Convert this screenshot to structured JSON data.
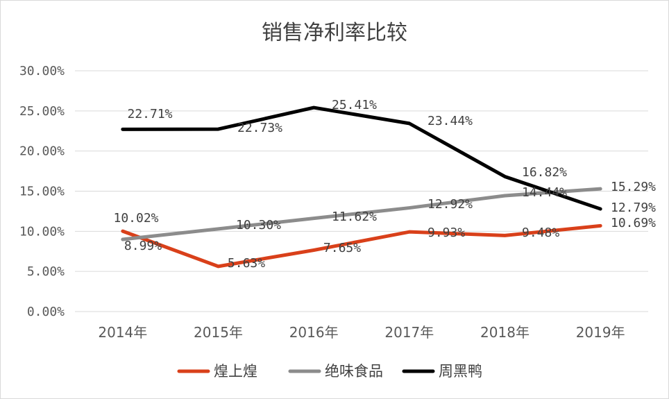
{
  "chart_data": {
    "type": "line",
    "title": "销售净利率比较",
    "categories": [
      "2014年",
      "2015年",
      "2016年",
      "2017年",
      "2018年",
      "2019年"
    ],
    "ylim": [
      0,
      30
    ],
    "yticks": [
      "0.00%",
      "5.00%",
      "10.00%",
      "15.00%",
      "20.00%",
      "25.00%",
      "30.00%"
    ],
    "grid": true,
    "legend_position": "bottom",
    "series": [
      {
        "name": "煌上煌",
        "color": "#d9401a",
        "values": [
          10.02,
          5.63,
          7.65,
          9.93,
          9.48,
          10.69
        ],
        "labels": [
          "10.02%",
          "5.63%",
          "7.65%",
          "9.93%",
          "9.48%",
          "10.69%"
        ]
      },
      {
        "name": "绝味食品",
        "color": "#8c8c8c",
        "values": [
          8.99,
          10.3,
          11.62,
          12.92,
          14.44,
          15.29
        ],
        "labels": [
          "8.99%",
          "10.30%",
          "11.62%",
          "12.92%",
          "14.44%",
          "15.29%"
        ]
      },
      {
        "name": "周黑鸭",
        "color": "#000000",
        "values": [
          22.71,
          22.73,
          25.41,
          23.44,
          16.82,
          12.79
        ],
        "labels": [
          "22.71%",
          "22.73%",
          "25.41%",
          "23.44%",
          "16.82%",
          "12.79%"
        ]
      }
    ]
  }
}
